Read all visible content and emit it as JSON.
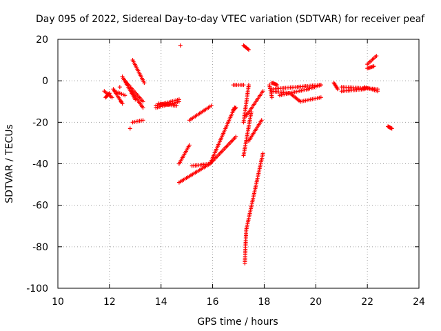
{
  "chart_data": {
    "type": "scatter",
    "title": "Day 095 of 2022, Sidereal Day-to-day VTEC variation (SDTVAR) for receiver peaf",
    "xlabel": "GPS time / hours",
    "ylabel": "SDTVAR / TECUs",
    "xlim": [
      10,
      24
    ],
    "ylim": [
      -100,
      20
    ],
    "xticks": [
      10,
      12,
      14,
      16,
      18,
      20,
      22,
      24
    ],
    "yticks": [
      20,
      0,
      -20,
      -40,
      -60,
      -80,
      -100
    ],
    "xtick_labels": [
      "10",
      "12",
      "14",
      "16",
      "18",
      "20",
      "22",
      "24"
    ],
    "ytick_labels": [
      "20",
      "0",
      "-20",
      "-40",
      "-60",
      "-80",
      "-100"
    ],
    "grid": true,
    "marker": "plus",
    "color": "#ff0000",
    "segments": [
      {
        "x0": 11.8,
        "x1": 12.1,
        "y0": -5,
        "y1": -8
      },
      {
        "x0": 11.85,
        "x1": 12.0,
        "y0": -8,
        "y1": -6
      },
      {
        "x0": 12.15,
        "x1": 12.5,
        "y0": -4,
        "y1": -11
      },
      {
        "x0": 12.2,
        "x1": 12.6,
        "y0": -5,
        "y1": -7
      },
      {
        "x0": 12.5,
        "x1": 13.0,
        "y0": 2,
        "y1": -9
      },
      {
        "x0": 12.6,
        "x1": 13.3,
        "y0": 0,
        "y1": -10
      },
      {
        "x0": 12.9,
        "x1": 13.35,
        "y0": 10,
        "y1": -1
      },
      {
        "x0": 12.85,
        "x1": 13.3,
        "y0": -5,
        "y1": -13
      },
      {
        "x0": 12.9,
        "x1": 13.3,
        "y0": -20,
        "y1": -19
      },
      {
        "x0": 13.8,
        "x1": 14.7,
        "y0": -12,
        "y1": -9
      },
      {
        "x0": 13.8,
        "x1": 14.7,
        "y0": -13,
        "y1": -10
      },
      {
        "x0": 13.9,
        "x1": 14.6,
        "y0": -11,
        "y1": -12
      },
      {
        "x0": 14.7,
        "x1": 15.1,
        "y0": -40,
        "y1": -31
      },
      {
        "x0": 14.7,
        "x1": 15.9,
        "y0": -49,
        "y1": -40
      },
      {
        "x0": 15.9,
        "x1": 16.9,
        "y0": -40,
        "y1": -27
      },
      {
        "x0": 15.2,
        "x1": 15.9,
        "y0": -41,
        "y1": -40
      },
      {
        "x0": 15.1,
        "x1": 15.95,
        "y0": -19,
        "y1": -12
      },
      {
        "x0": 15.9,
        "x1": 16.85,
        "y0": -40,
        "y1": -13
      },
      {
        "x0": 16.8,
        "x1": 16.9,
        "y0": -14,
        "y1": -13
      },
      {
        "x0": 17.2,
        "x1": 17.4,
        "y0": 17,
        "y1": 15
      },
      {
        "x0": 17.2,
        "x1": 17.5,
        "y0": -36,
        "y1": -15
      },
      {
        "x0": 17.2,
        "x1": 17.4,
        "y0": -20,
        "y1": -2
      },
      {
        "x0": 17.3,
        "x1": 17.95,
        "y0": -17,
        "y1": -5
      },
      {
        "x0": 17.4,
        "x1": 17.9,
        "y0": -29,
        "y1": -19
      },
      {
        "x0": 17.25,
        "x1": 17.3,
        "y0": -88,
        "y1": -72
      },
      {
        "x0": 17.3,
        "x1": 17.95,
        "y0": -72,
        "y1": -35
      },
      {
        "x0": 16.8,
        "x1": 17.2,
        "y0": -2,
        "y1": -2
      },
      {
        "x0": 18.2,
        "x1": 18.3,
        "y0": -2,
        "y1": -8
      },
      {
        "x0": 18.3,
        "x1": 18.5,
        "y0": -1,
        "y1": -2
      },
      {
        "x0": 18.3,
        "x1": 20.2,
        "y0": -4,
        "y1": -2
      },
      {
        "x0": 18.3,
        "x1": 19.0,
        "y0": -5,
        "y1": -6
      },
      {
        "x0": 19.0,
        "x1": 19.4,
        "y0": -6,
        "y1": -10
      },
      {
        "x0": 19.4,
        "x1": 20.2,
        "y0": -10,
        "y1": -8
      },
      {
        "x0": 18.6,
        "x1": 19.7,
        "y0": -7,
        "y1": -4
      },
      {
        "x0": 19.7,
        "x1": 20.2,
        "y0": -4,
        "y1": -2
      },
      {
        "x0": 20.7,
        "x1": 20.85,
        "y0": -1,
        "y1": -4
      },
      {
        "x0": 21.0,
        "x1": 22.4,
        "y0": -3,
        "y1": -4
      },
      {
        "x0": 21.0,
        "x1": 21.9,
        "y0": -5,
        "y1": -4
      },
      {
        "x0": 21.9,
        "x1": 22.4,
        "y0": -3,
        "y1": -5
      },
      {
        "x0": 22.0,
        "x1": 22.35,
        "y0": 8,
        "y1": 12
      },
      {
        "x0": 22.0,
        "x1": 22.25,
        "y0": 6,
        "y1": 7
      },
      {
        "x0": 22.8,
        "x1": 22.95,
        "y0": -22,
        "y1": -23
      }
    ],
    "points": [
      {
        "x": 14.75,
        "y": 17
      },
      {
        "x": 12.8,
        "y": -23
      },
      {
        "x": 12.4,
        "y": -3
      },
      {
        "x": 12.45,
        "y": -10
      },
      {
        "x": 16.85,
        "y": -13
      },
      {
        "x": 18.3,
        "y": -1
      }
    ]
  }
}
